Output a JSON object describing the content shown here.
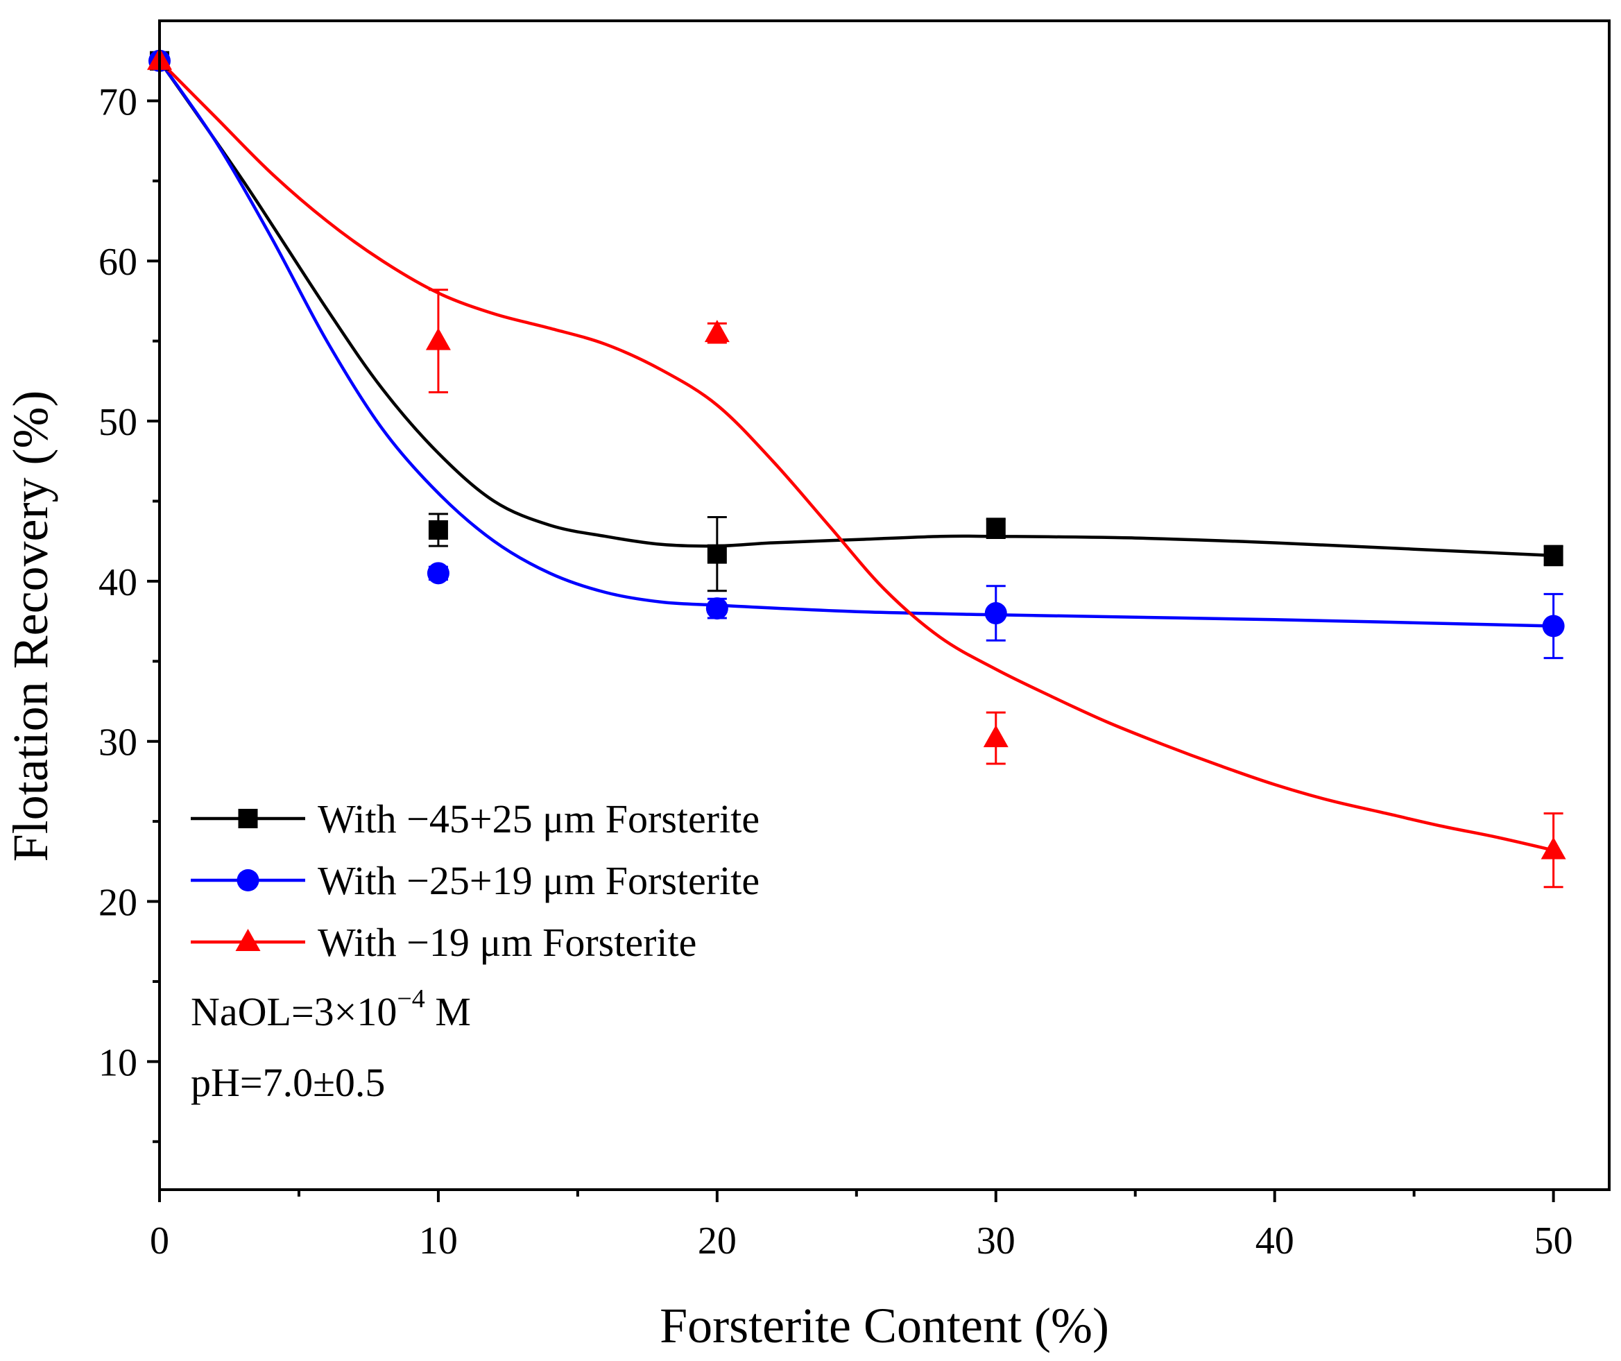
{
  "chart_data": {
    "type": "scatter",
    "xlabel": "Forsterite Content (%)",
    "ylabel": "Flotation Recovery (%)",
    "xlim": [
      0,
      52
    ],
    "ylim": [
      2,
      75
    ],
    "xticks": [
      0,
      10,
      20,
      30,
      40,
      50
    ],
    "yticks": [
      10,
      20,
      30,
      40,
      50,
      60,
      70
    ],
    "xtick_labels": [
      "0",
      "10",
      "20",
      "30",
      "40",
      "50"
    ],
    "ytick_labels": [
      "10",
      "20",
      "30",
      "40",
      "50",
      "60",
      "70"
    ],
    "xminor": [
      5,
      15,
      25,
      35,
      45
    ],
    "yminor": [
      5,
      15,
      25,
      35,
      45,
      55,
      65
    ],
    "grid": false,
    "legend_position": "bottom-left",
    "series": [
      {
        "name": "With −45+25 μm Forsterite",
        "color": "#000000",
        "marker": "square",
        "x": [
          0,
          10,
          20,
          30,
          50
        ],
        "y": [
          72.5,
          43.2,
          41.7,
          43.3,
          41.6
        ],
        "err": [
          0.5,
          1.0,
          2.3,
          0.6,
          0.6
        ],
        "fit": [
          [
            0,
            72.5
          ],
          [
            3,
            65.0
          ],
          [
            6,
            57.0
          ],
          [
            8,
            52.0
          ],
          [
            10,
            48.0
          ],
          [
            12,
            45.0
          ],
          [
            14,
            43.5
          ],
          [
            16,
            42.8
          ],
          [
            18,
            42.3
          ],
          [
            20,
            42.2
          ],
          [
            22,
            42.4
          ],
          [
            25,
            42.6
          ],
          [
            28,
            42.8
          ],
          [
            30,
            42.8
          ],
          [
            35,
            42.7
          ],
          [
            40,
            42.4
          ],
          [
            45,
            42.0
          ],
          [
            50,
            41.6
          ]
        ]
      },
      {
        "name": "With −25+19 μm Forsterite",
        "color": "#0000ff",
        "marker": "circle",
        "x": [
          0,
          10,
          20,
          30,
          50
        ],
        "y": [
          72.5,
          40.5,
          38.3,
          38.0,
          37.2
        ],
        "err": [
          0.5,
          0.4,
          0.6,
          1.7,
          2.0
        ],
        "fit": [
          [
            0,
            72.5
          ],
          [
            2,
            67.5
          ],
          [
            4,
            61.5
          ],
          [
            6,
            55.0
          ],
          [
            8,
            49.5
          ],
          [
            10,
            45.5
          ],
          [
            12,
            42.5
          ],
          [
            14,
            40.5
          ],
          [
            16,
            39.3
          ],
          [
            18,
            38.7
          ],
          [
            20,
            38.5
          ],
          [
            25,
            38.1
          ],
          [
            30,
            37.9
          ],
          [
            40,
            37.6
          ],
          [
            50,
            37.2
          ]
        ]
      },
      {
        "name": "With −19 μm Forsterite",
        "color": "#ff0000",
        "marker": "triangle",
        "x": [
          0,
          10,
          20,
          30,
          50
        ],
        "y": [
          72.5,
          55.0,
          55.5,
          30.2,
          23.2
        ],
        "err": [
          0.5,
          3.2,
          0.6,
          1.6,
          2.3
        ],
        "fit": [
          [
            0,
            72.5
          ],
          [
            2,
            69.0
          ],
          [
            4,
            65.5
          ],
          [
            6,
            62.5
          ],
          [
            8,
            60.0
          ],
          [
            10,
            58.0
          ],
          [
            12,
            56.7
          ],
          [
            14,
            55.8
          ],
          [
            16,
            54.8
          ],
          [
            18,
            53.2
          ],
          [
            20,
            51.0
          ],
          [
            22,
            47.5
          ],
          [
            24,
            43.5
          ],
          [
            26,
            39.5
          ],
          [
            28,
            36.5
          ],
          [
            30,
            34.5
          ],
          [
            32,
            32.8
          ],
          [
            34,
            31.2
          ],
          [
            36,
            29.8
          ],
          [
            38,
            28.5
          ],
          [
            40,
            27.3
          ],
          [
            42,
            26.3
          ],
          [
            44,
            25.5
          ],
          [
            46,
            24.7
          ],
          [
            48,
            24.0
          ],
          [
            50,
            23.2
          ]
        ]
      }
    ],
    "annotations": {
      "naol_base": "NaOL=3×10",
      "naol_exp": "−4",
      "naol_unit": " M",
      "ph": "pH=7.0±0.5"
    }
  }
}
